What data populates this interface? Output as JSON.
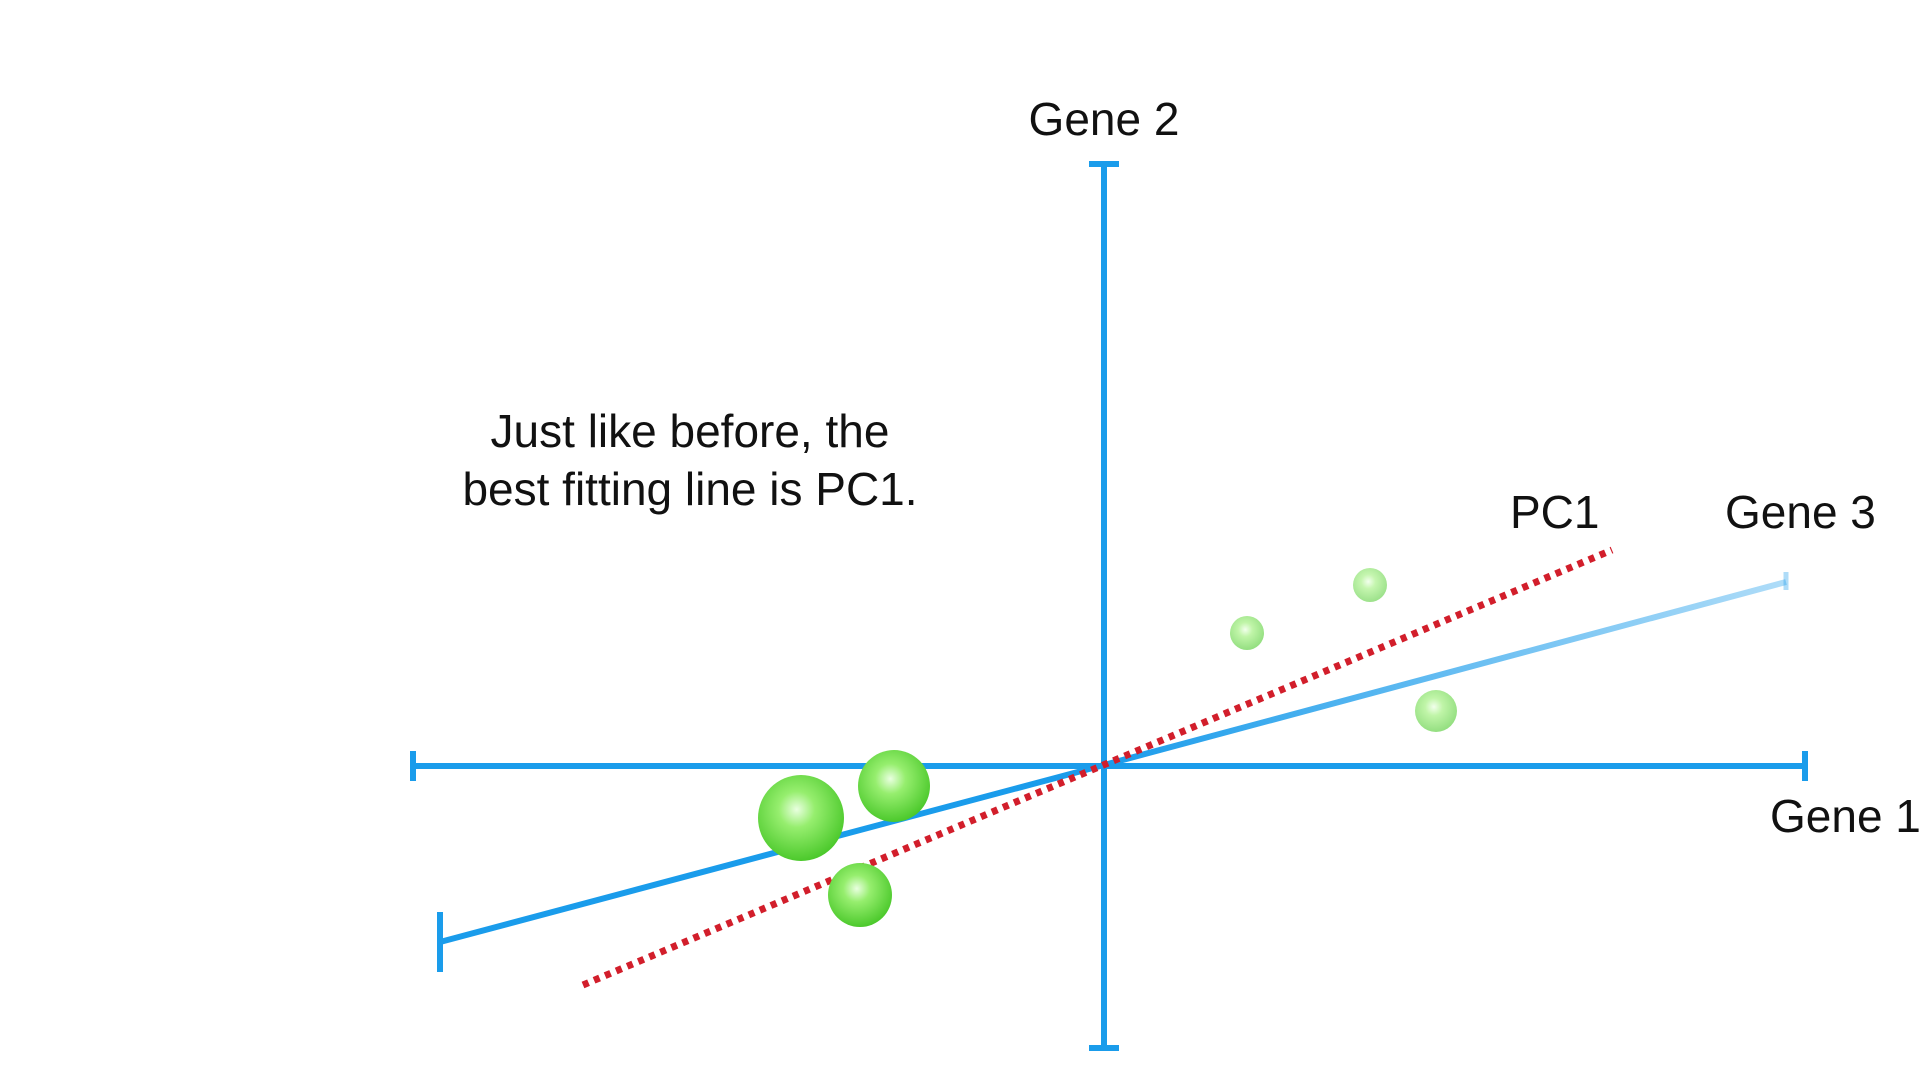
{
  "axes": {
    "gene1_label": "Gene 1",
    "gene2_label": "Gene 2",
    "gene3_label": "Gene 3",
    "axis_color": "#1a9ceb"
  },
  "pc1": {
    "label": "PC1",
    "color": "#d21e2b",
    "style": "dotted"
  },
  "caption": {
    "line1": "Just like before, the",
    "line2": "best fitting line is PC1."
  },
  "point_color": "#6fdc4f"
}
